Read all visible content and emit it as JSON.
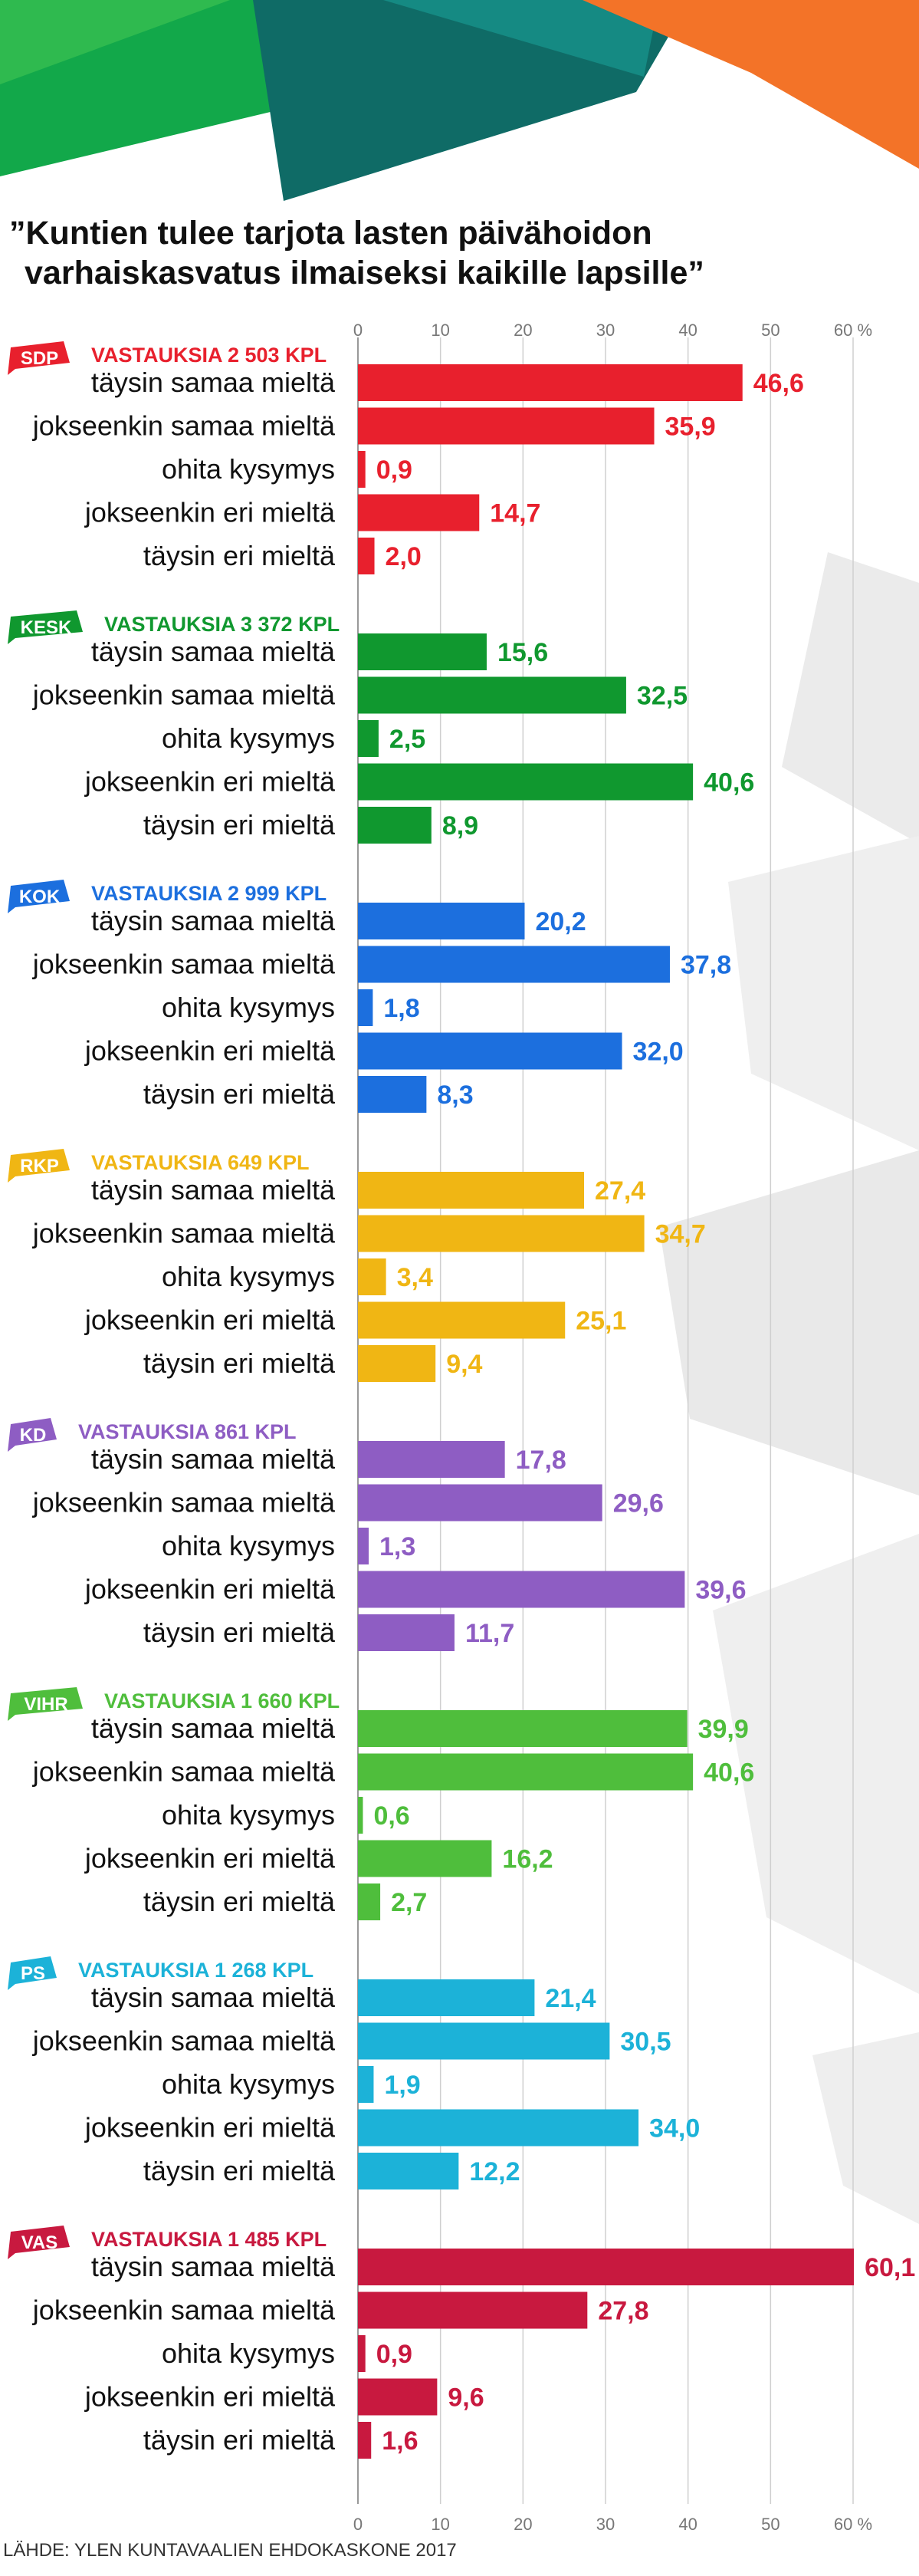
{
  "title_line1": "”Kuntien tulee tarjota lasten päivähoidon",
  "title_line2": "varhaiskasvatus ilmaiseksi kaikille lapsille”",
  "source": "LÄHDE: YLEN KUNTAVAALIEN EHDOKASKONE 2017",
  "chart_data": {
    "type": "bar",
    "orientation": "horizontal",
    "title": "”Kuntien tulee tarjota lasten päivähoidon varhaiskasvatus ilmaiseksi kaikille lapsille”",
    "xlim": [
      0,
      60
    ],
    "ticks": [
      0,
      10,
      20,
      30,
      40,
      50,
      60
    ],
    "tick_labels": [
      "0",
      "10",
      "20",
      "30",
      "40",
      "50",
      "60 %"
    ],
    "grid": true,
    "categories": [
      "täysin samaa mieltä",
      "jokseenkin samaa mieltä",
      "ohita kysymys",
      "jokseenkin eri mieltä",
      "täysin eri mieltä"
    ],
    "groups": [
      {
        "party": "SDP",
        "responses": "VASTAUKSIA 2 503 KPL",
        "color": "#e8202d",
        "values": [
          46.6,
          35.9,
          0.9,
          14.7,
          2.0
        ],
        "labels": [
          "46,6",
          "35,9",
          "0,9",
          "14,7",
          "2,0"
        ]
      },
      {
        "party": "KESK",
        "responses": "VASTAUKSIA 3 372 KPL",
        "color": "#10982f",
        "values": [
          15.6,
          32.5,
          2.5,
          40.6,
          8.9
        ],
        "labels": [
          "15,6",
          "32,5",
          "2,5",
          "40,6",
          "8,9"
        ]
      },
      {
        "party": "KOK",
        "responses": "VASTAUKSIA 2 999 KPL",
        "color": "#1c6fde",
        "values": [
          20.2,
          37.8,
          1.8,
          32.0,
          8.3
        ],
        "labels": [
          "20,2",
          "37,8",
          "1,8",
          "32,0",
          "8,3"
        ]
      },
      {
        "party": "RKP",
        "responses": "VASTAUKSIA 649 KPL",
        "color": "#f0b614",
        "values": [
          27.4,
          34.7,
          3.4,
          25.1,
          9.4
        ],
        "labels": [
          "27,4",
          "34,7",
          "3,4",
          "25,1",
          "9,4"
        ]
      },
      {
        "party": "KD",
        "responses": "VASTAUKSIA 861 KPL",
        "color": "#8e5dc3",
        "values": [
          17.8,
          29.6,
          1.3,
          39.6,
          11.7
        ],
        "labels": [
          "17,8",
          "29,6",
          "1,3",
          "39,6",
          "11,7"
        ]
      },
      {
        "party": "VIHR",
        "responses": "VASTAUKSIA 1 660 KPL",
        "color": "#4fbe3c",
        "values": [
          39.9,
          40.6,
          0.6,
          16.2,
          2.7
        ],
        "labels": [
          "39,9",
          "40,6",
          "0,6",
          "16,2",
          "2,7"
        ]
      },
      {
        "party": "PS",
        "responses": "VASTAUKSIA 1 268 KPL",
        "color": "#1cb2d8",
        "values": [
          21.4,
          30.5,
          1.9,
          34.0,
          12.2
        ],
        "labels": [
          "21,4",
          "30,5",
          "1,9",
          "34,0",
          "12,2"
        ]
      },
      {
        "party": "VAS",
        "responses": "VASTAUKSIA 1 485 KPL",
        "color": "#c8193f",
        "values": [
          60.1,
          27.8,
          0.9,
          9.6,
          1.6
        ],
        "labels": [
          "60,1",
          "27,8",
          "0,9",
          "9,6",
          "1,6"
        ]
      }
    ]
  }
}
